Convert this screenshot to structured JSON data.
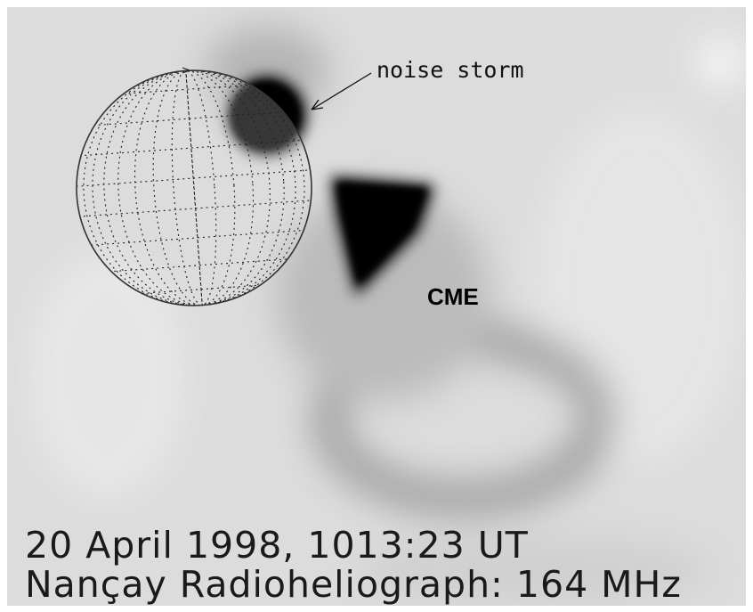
{
  "annotations": {
    "noise_storm": "noise storm",
    "cme": "CME"
  },
  "caption": {
    "line1": "20 April 1998, 1013:23 UT",
    "line2": "Nançay Radioheliograph: 164 MHz"
  }
}
